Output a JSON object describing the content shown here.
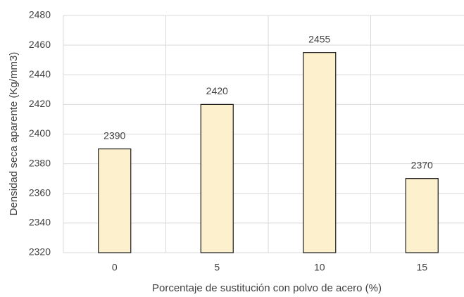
{
  "chart_data": {
    "type": "bar",
    "categories": [
      "0",
      "5",
      "10",
      "15"
    ],
    "values": [
      2390,
      2420,
      2455,
      2370
    ],
    "color": "#fdf0cc",
    "edge_color": "#1a1a1a",
    "ylim": [
      2320,
      2480
    ],
    "yticks": [
      2320,
      2340,
      2360,
      2380,
      2400,
      2420,
      2440,
      2460,
      2480
    ],
    "xlabel": "Porcentaje de sustitución con polvo de acero (%)",
    "ylabel": "Densidad seca aparente (Kg/mm3)",
    "grid": true,
    "data_labels": true
  }
}
